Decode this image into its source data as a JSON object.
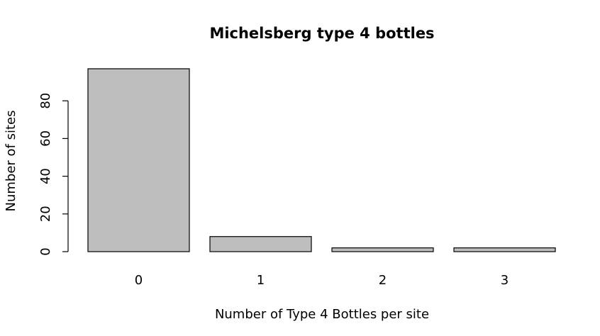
{
  "chart_data": {
    "type": "bar",
    "title": "Michelsberg type 4 bottles",
    "xlabel": "Number of Type 4 Bottles per site",
    "ylabel": "Number of sites",
    "categories": [
      "0",
      "1",
      "2",
      "3"
    ],
    "values": [
      97,
      8,
      2,
      2
    ],
    "y_ticks": [
      0,
      20,
      40,
      60,
      80
    ],
    "ylim": [
      0,
      100
    ],
    "grid": false,
    "bar_color": "#bebebe",
    "border_color": "#000000"
  }
}
